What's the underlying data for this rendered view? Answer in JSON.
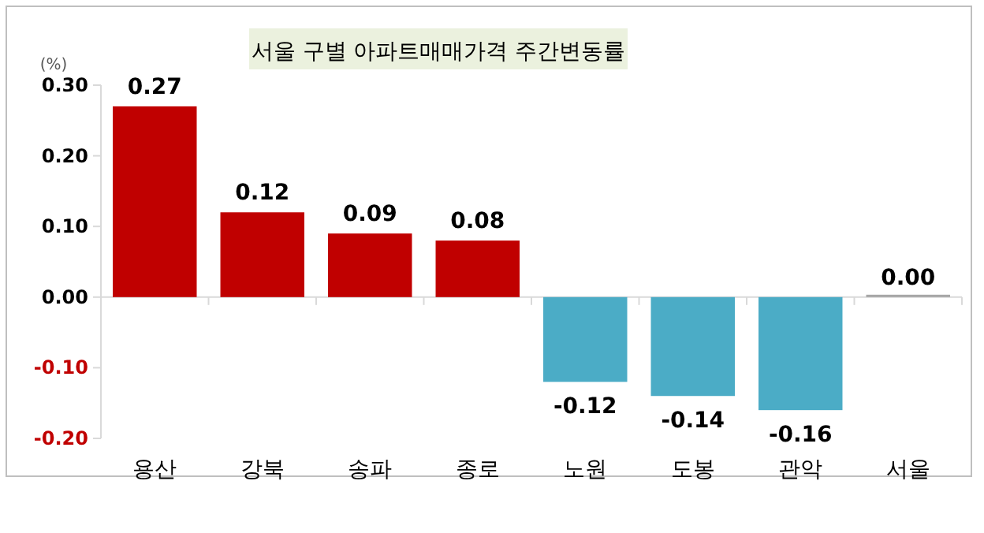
{
  "chart_data": {
    "type": "bar",
    "title": "서울 구별 아파트매매가격 주간변동률",
    "ylabel": "(%)",
    "categories": [
      "용산",
      "강북",
      "송파",
      "종로",
      "노원",
      "도봉",
      "관악",
      "서울"
    ],
    "values": [
      0.27,
      0.12,
      0.09,
      0.08,
      -0.12,
      -0.14,
      -0.16,
      0.0
    ],
    "colors": [
      "#c00000",
      "#c00000",
      "#c00000",
      "#c00000",
      "#4bacc6",
      "#4bacc6",
      "#4bacc6",
      "#a6a6a6"
    ],
    "ylim": [
      -0.2,
      0.3
    ],
    "yticks": [
      {
        "value": -0.2,
        "label": "-0.20"
      },
      {
        "value": -0.1,
        "label": "-0.10"
      },
      {
        "value": 0,
        "label": "0.00"
      },
      {
        "value": 0.1,
        "label": "0.10"
      },
      {
        "value": 0.2,
        "label": "0.20"
      },
      {
        "value": 0.3,
        "label": "0.30"
      }
    ],
    "value_labels": [
      "0.27",
      "0.12",
      "0.09",
      "0.08",
      "-0.12",
      "-0.14",
      "-0.16",
      "0.00"
    ]
  }
}
